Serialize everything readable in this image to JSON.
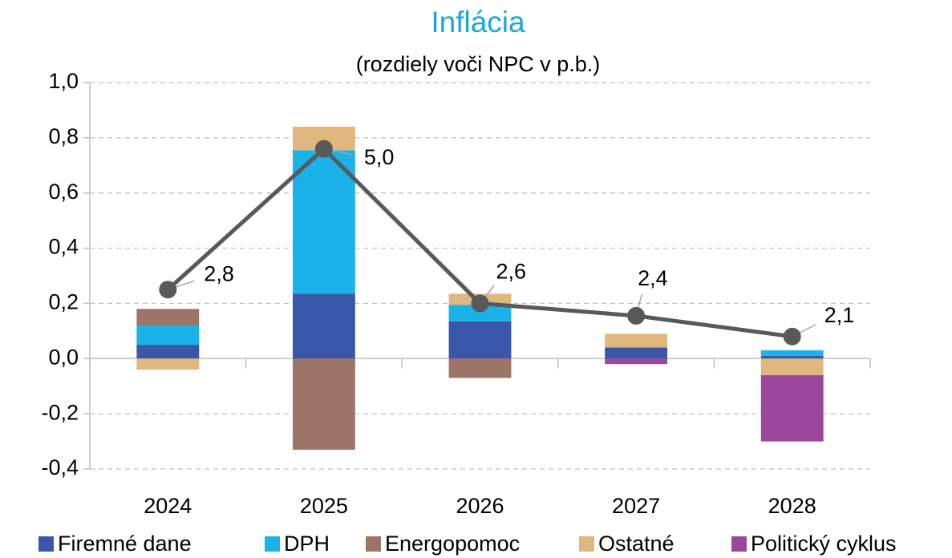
{
  "chart_data": {
    "type": "bar",
    "stacked": true,
    "title": "Inflácia",
    "subtitle": "(rozdiely voči NPC v p.b.)",
    "categories": [
      "2024",
      "2025",
      "2026",
      "2027",
      "2028"
    ],
    "ylim": [
      -0.4,
      1.0
    ],
    "yticks": [
      {
        "value": -0.4,
        "label": "-0,4"
      },
      {
        "value": -0.2,
        "label": "-0,2"
      },
      {
        "value": 0,
        "label": "0,0"
      },
      {
        "value": 0.2,
        "label": "0,2"
      },
      {
        "value": 0.4,
        "label": "0,4"
      },
      {
        "value": 0.6,
        "label": "0,6"
      },
      {
        "value": 0.8,
        "label": "0,8"
      },
      {
        "value": 1.0,
        "label": "1,0"
      }
    ],
    "grid": true,
    "legend": "bottom",
    "series": [
      {
        "name": "Firemné dane",
        "color": "#3a56a8",
        "values": [
          0.05,
          0.235,
          0.135,
          0.04,
          0.01
        ]
      },
      {
        "name": "DPH",
        "color": "#1ab2e8",
        "values": [
          0.07,
          0.52,
          0.06,
          0,
          0.02
        ]
      },
      {
        "name": "Energopomoc",
        "color": "#9c7468",
        "values": [
          0.06,
          -0.33,
          -0.07,
          0,
          0
        ]
      },
      {
        "name": "Ostatné",
        "color": "#e0b77e",
        "values": [
          -0.04,
          0.085,
          0.04,
          0.05,
          -0.06
        ]
      },
      {
        "name": "Politický cyklus",
        "color": "#9b479c",
        "values": [
          0,
          0,
          0,
          -0.02,
          -0.24
        ]
      }
    ],
    "line": {
      "type": "line",
      "color": "#595959",
      "values": [
        0.25,
        0.76,
        0.2,
        0.155,
        0.08
      ],
      "point_labels": [
        "2,8",
        "5,0",
        "2,6",
        "2,4",
        "2,1"
      ]
    }
  }
}
